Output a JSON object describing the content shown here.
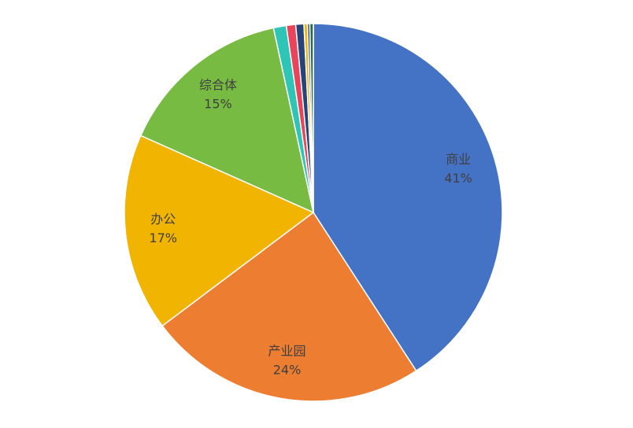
{
  "chart_data": {
    "type": "pie",
    "categories": [
      "商业",
      "产业园",
      "办公",
      "综合体",
      null,
      null,
      null,
      null,
      null,
      null
    ],
    "values": [
      41,
      24,
      17,
      15,
      1.1,
      0.8,
      0.7,
      0.3,
      0.2,
      0.3
    ],
    "value_labels": [
      "41%",
      "24%",
      "17%",
      "15%",
      null,
      null,
      null,
      null,
      null,
      null
    ],
    "colors": [
      "#4472c4",
      "#ed7d31",
      "#f1b400",
      "#78bb43",
      "#2ec4b6",
      "#e8445a",
      "#264478",
      "#f4b400",
      "#1f3c88",
      "#2e6b3a"
    ]
  }
}
